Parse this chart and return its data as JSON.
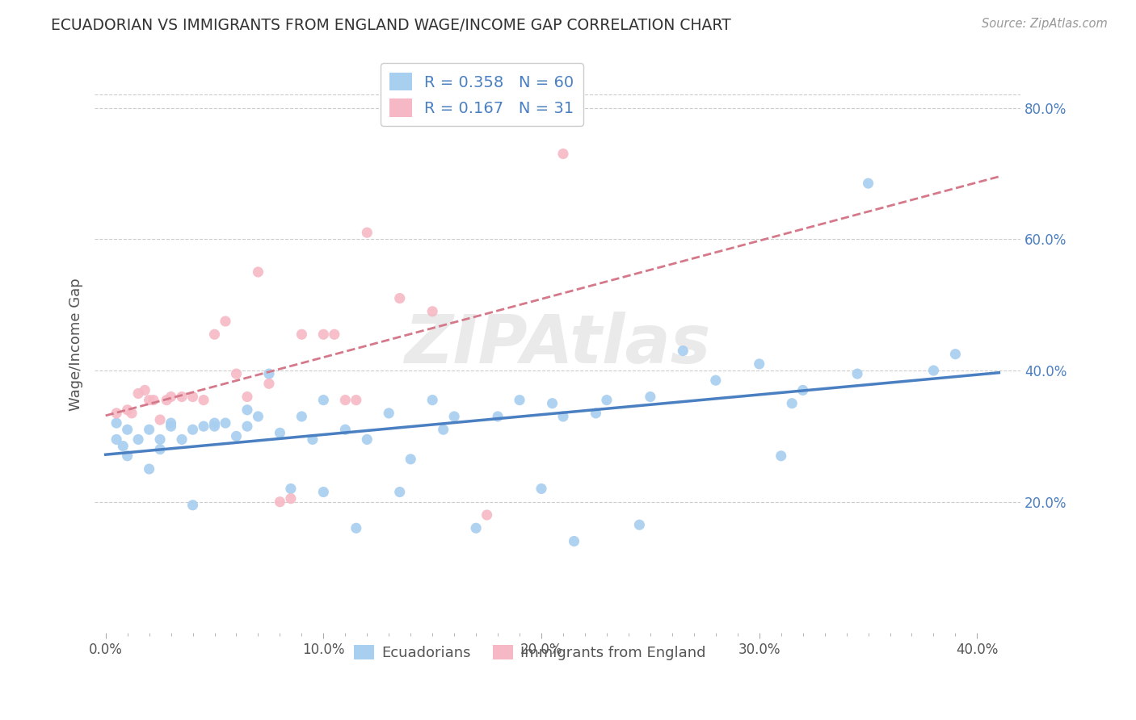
{
  "title": "ECUADORIAN VS IMMIGRANTS FROM ENGLAND WAGE/INCOME GAP CORRELATION CHART",
  "source": "Source: ZipAtlas.com",
  "ylabel": "Wage/Income Gap",
  "xlim": [
    -0.005,
    0.42
  ],
  "ylim": [
    0.0,
    0.88
  ],
  "xtick_labels": [
    "0.0%",
    "",
    "",
    "",
    "",
    "",
    "",
    "",
    "10.0%",
    "",
    "",
    "",
    "",
    "",
    "",
    "",
    "20.0%",
    "",
    "",
    "",
    "",
    "",
    "",
    "",
    "30.0%",
    "",
    "",
    "",
    "",
    "",
    "",
    "",
    "40.0%"
  ],
  "xtick_vals": [
    0.0,
    0.0125,
    0.025,
    0.0375,
    0.05,
    0.0625,
    0.075,
    0.0875,
    0.1,
    0.1125,
    0.125,
    0.1375,
    0.15,
    0.1625,
    0.175,
    0.1875,
    0.2,
    0.2125,
    0.225,
    0.2375,
    0.25,
    0.2625,
    0.275,
    0.2875,
    0.3,
    0.3125,
    0.325,
    0.3375,
    0.35,
    0.3625,
    0.375,
    0.3875,
    0.4
  ],
  "ytick_labels": [
    "20.0%",
    "40.0%",
    "60.0%",
    "80.0%"
  ],
  "ytick_vals": [
    0.2,
    0.4,
    0.6,
    0.8
  ],
  "color_blue": "#a8cef0",
  "color_pink": "#f5b8c4",
  "line_blue": "#4a7fc1",
  "line_pink": "#d4788a",
  "watermark": "ZIPAtlas",
  "legend_R1": "R = 0.358",
  "legend_N1": "N = 60",
  "legend_R2": "R = 0.167",
  "legend_N2": "N = 31",
  "ecuadorians_x": [
    0.005,
    0.008,
    0.01,
    0.01,
    0.015,
    0.02,
    0.02,
    0.025,
    0.025,
    0.03,
    0.03,
    0.035,
    0.04,
    0.04,
    0.045,
    0.05,
    0.05,
    0.055,
    0.06,
    0.065,
    0.065,
    0.07,
    0.075,
    0.08,
    0.085,
    0.09,
    0.095,
    0.1,
    0.1,
    0.11,
    0.115,
    0.12,
    0.13,
    0.135,
    0.14,
    0.15,
    0.155,
    0.16,
    0.17,
    0.18,
    0.19,
    0.2,
    0.205,
    0.21,
    0.215,
    0.225,
    0.23,
    0.245,
    0.25,
    0.265,
    0.28,
    0.3,
    0.31,
    0.315,
    0.32,
    0.345,
    0.35,
    0.38,
    0.39,
    0.005
  ],
  "ecuadorians_y": [
    0.295,
    0.285,
    0.27,
    0.31,
    0.295,
    0.25,
    0.31,
    0.295,
    0.28,
    0.32,
    0.315,
    0.295,
    0.195,
    0.31,
    0.315,
    0.315,
    0.32,
    0.32,
    0.3,
    0.315,
    0.34,
    0.33,
    0.395,
    0.305,
    0.22,
    0.33,
    0.295,
    0.215,
    0.355,
    0.31,
    0.16,
    0.295,
    0.335,
    0.215,
    0.265,
    0.355,
    0.31,
    0.33,
    0.16,
    0.33,
    0.355,
    0.22,
    0.35,
    0.33,
    0.14,
    0.335,
    0.355,
    0.165,
    0.36,
    0.43,
    0.385,
    0.41,
    0.27,
    0.35,
    0.37,
    0.395,
    0.685,
    0.4,
    0.425,
    0.32
  ],
  "england_x": [
    0.005,
    0.01,
    0.012,
    0.015,
    0.018,
    0.02,
    0.022,
    0.025,
    0.028,
    0.03,
    0.035,
    0.04,
    0.045,
    0.05,
    0.055,
    0.06,
    0.065,
    0.07,
    0.075,
    0.08,
    0.085,
    0.09,
    0.1,
    0.105,
    0.11,
    0.115,
    0.12,
    0.135,
    0.15,
    0.175,
    0.21
  ],
  "england_y": [
    0.335,
    0.34,
    0.335,
    0.365,
    0.37,
    0.355,
    0.355,
    0.325,
    0.355,
    0.36,
    0.36,
    0.36,
    0.355,
    0.455,
    0.475,
    0.395,
    0.36,
    0.55,
    0.38,
    0.2,
    0.205,
    0.455,
    0.455,
    0.455,
    0.355,
    0.355,
    0.61,
    0.51,
    0.49,
    0.18,
    0.73
  ]
}
